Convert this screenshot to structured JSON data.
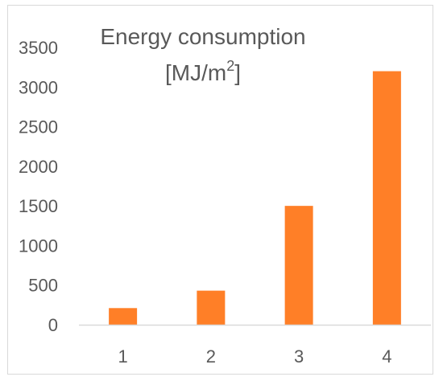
{
  "chart_data": {
    "type": "bar",
    "title": "Energy consumption",
    "title_unit_base": "[MJ/m",
    "title_unit_sup": "2",
    "title_unit_close": "]",
    "xlabel": "",
    "ylabel": "",
    "categories": [
      "1",
      "2",
      "3",
      "4"
    ],
    "values": [
      210,
      430,
      1500,
      3200
    ],
    "ylim": [
      0,
      3500
    ],
    "yticks": [
      "0",
      "500",
      "1000",
      "1500",
      "2000",
      "2500",
      "3000",
      "3500"
    ],
    "grid": false,
    "legend": "none",
    "bar_color": "#FF7F27",
    "axis_color": "#D9D9D9",
    "text_color": "#595959"
  }
}
